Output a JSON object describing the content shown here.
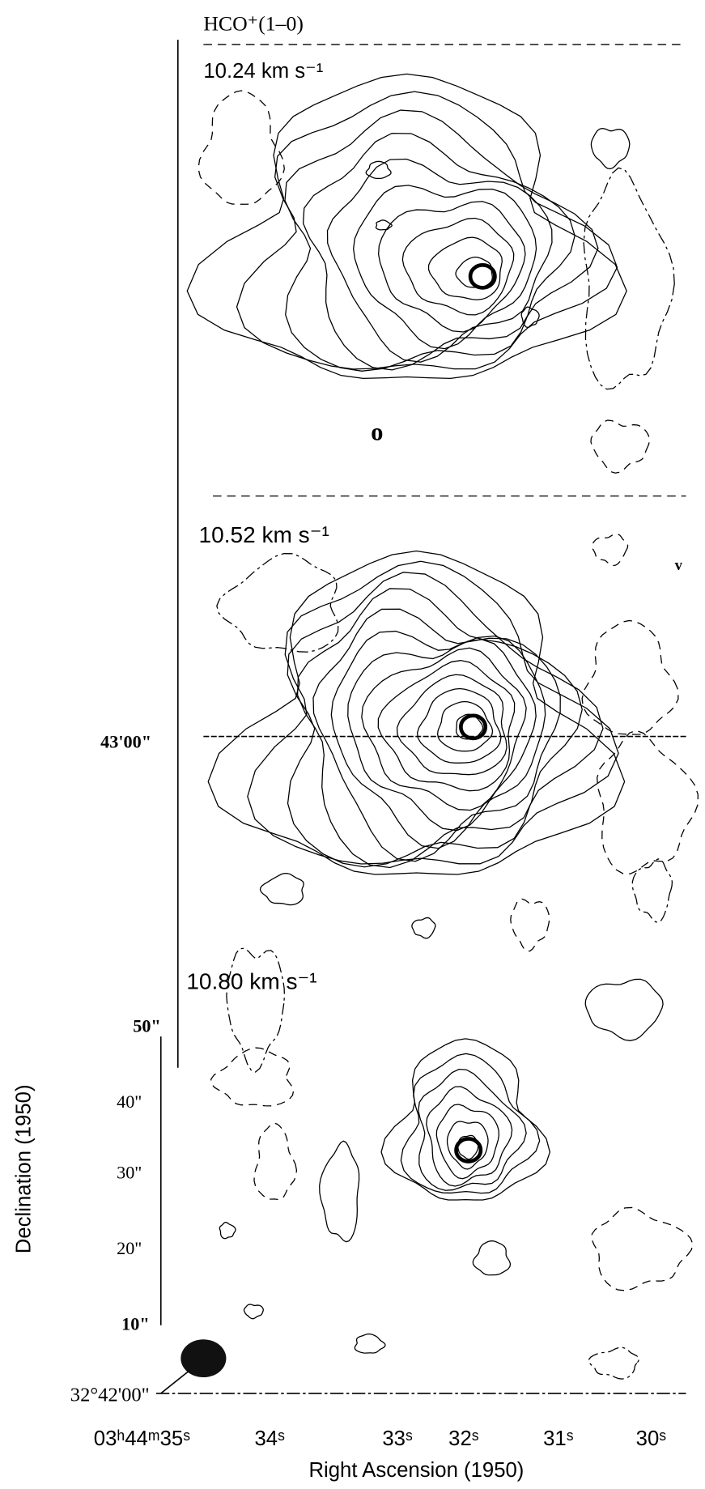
{
  "figure": {
    "line": "HCO⁺(1–0)",
    "panels": [
      {
        "velocity": "10.24 km s⁻¹",
        "mark": "o"
      },
      {
        "velocity": "10.52 km s⁻¹",
        "mark": "v"
      },
      {
        "velocity": "10.80 km s⁻¹"
      }
    ],
    "dec_labels": [
      "43'00\"",
      "50\"",
      "40\"",
      "30\"",
      "20\"",
      "10\"",
      "32°42'00\""
    ],
    "ra_labels": [
      "03ʰ44ᵐ35ˢ",
      "34ˢ",
      "33ˢ",
      "32ˢ",
      "31ˢ",
      "30ˢ"
    ],
    "x_title": "Right Ascension (1950)",
    "y_title": "Declination (1950)"
  }
}
